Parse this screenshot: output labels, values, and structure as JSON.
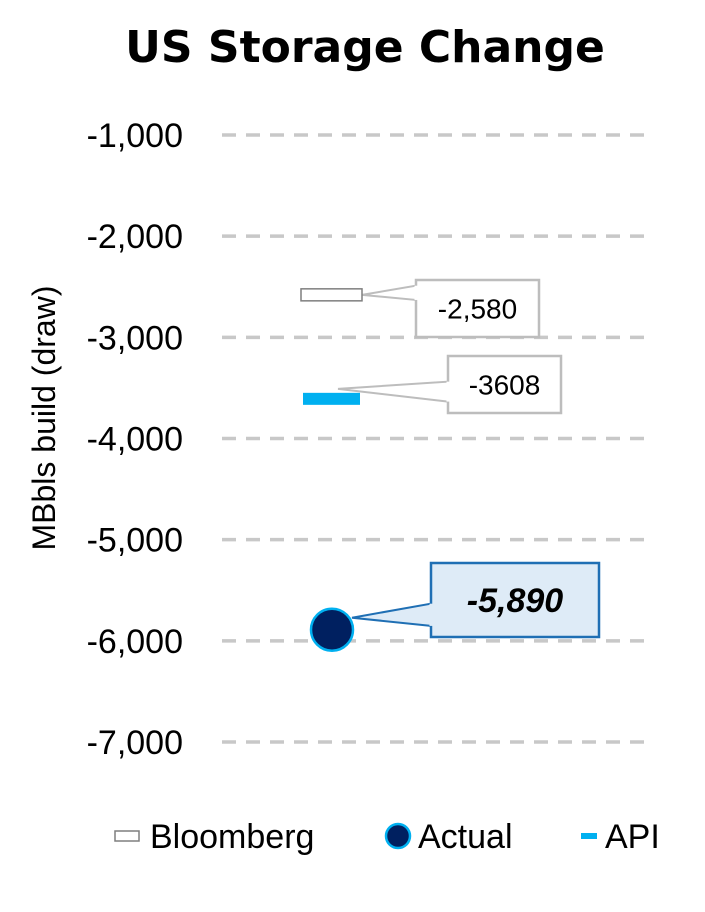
{
  "chart_data": {
    "type": "scatter",
    "title": "US Storage Change",
    "ylabel": "MBbls build (draw)",
    "xlabel": "",
    "ylim": [
      -7000,
      -1000
    ],
    "yticks": [
      -1000,
      -2000,
      -3000,
      -4000,
      -5000,
      -6000,
      -7000
    ],
    "ytick_labels": [
      "-1,000",
      "-2,000",
      "-3,000",
      "-4,000",
      "-5,000",
      "-6,000",
      "-7,000"
    ],
    "grid": true,
    "legend_position": "bottom",
    "series": [
      {
        "name": "Bloomberg",
        "marker": "dash-outline",
        "value": -2580,
        "label": "-2,580",
        "color": "#ffffff",
        "edge_color": "#7f7f7f"
      },
      {
        "name": "API",
        "marker": "dash",
        "value": -3608,
        "label": "-3608",
        "color": "#00b0f0"
      },
      {
        "name": "Actual",
        "marker": "circle",
        "value": -5890,
        "label": "-5,890",
        "color": "#002060",
        "edge_color": "#00b0f0",
        "label_fill": "#deebf7",
        "label_border": "#1f6fb4"
      }
    ]
  }
}
